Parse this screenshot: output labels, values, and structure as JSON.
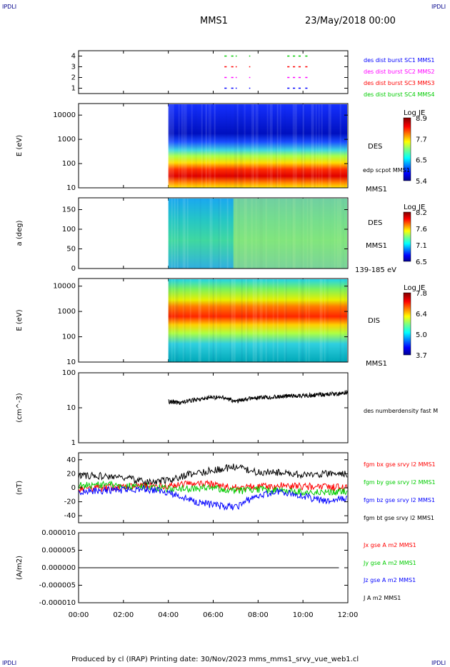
{
  "header": {
    "corner_tl": "IPDLI",
    "corner_tr": "IPDLI",
    "corner_bl": "IPDLI",
    "corner_br": "IPDLI",
    "title": "MMS1",
    "date": "23/May/2018 00:00"
  },
  "footer": {
    "text": "Produced by cl (IRAP)   Printing date: 30/Nov/2023   mms_mms1_srvy_vue_web1.cl"
  },
  "colors": {
    "bx": "#ff0000",
    "by": "#00cc00",
    "bz": "#0000ff",
    "bt": "#000000",
    "sc1": "#0000ff",
    "sc2": "#ff00ff",
    "sc3": "#ff0000",
    "sc4": "#00cc00"
  },
  "chart_data": [
    {
      "type": "scatter",
      "id": "burst",
      "yticks": [
        "1",
        "2",
        "3",
        "4"
      ],
      "ylim": [
        0.5,
        4.5
      ],
      "legend": [
        {
          "text": "des dist burst SC1 MMS1",
          "color": "#0000ff"
        },
        {
          "text": "des dist burst SC2 MMS2",
          "color": "#ff00ff"
        },
        {
          "text": "des dist burst SC3 MMS3",
          "color": "#ff0000"
        },
        {
          "text": "des dist burst SC4 MMS4",
          "color": "#00cc00"
        }
      ],
      "intervals_hours": [
        [
          6.5,
          6.6
        ],
        [
          6.8,
          6.9
        ],
        [
          7.0,
          7.05
        ],
        [
          7.6,
          7.65
        ],
        [
          9.3,
          9.4
        ],
        [
          9.55,
          9.65
        ],
        [
          9.8,
          9.9
        ],
        [
          10.1,
          10.2
        ]
      ]
    },
    {
      "type": "heatmap",
      "id": "des-energy",
      "ylabel": "E (eV)",
      "yticks": [
        "10",
        "100",
        "1000",
        "10000"
      ],
      "ylim_log": [
        10,
        30000
      ],
      "side_label_1": "DES",
      "side_label_2": "edp scpot MMS1",
      "side_label_3": "MMS1",
      "colorbar": {
        "title": "Log JE",
        "ticks": [
          "8.9",
          "7.7",
          "6.5",
          "5.4"
        ]
      },
      "data_start_hour": 4.0
    },
    {
      "type": "heatmap",
      "id": "des-pitch",
      "ylabel": "a (deg)",
      "yticks": [
        "0",
        "50",
        "100",
        "150"
      ],
      "ylim": [
        0,
        180
      ],
      "side_label_1": "DES",
      "side_label_2": "MMS1",
      "side_label_3": "139-185 eV",
      "colorbar": {
        "title": "Log JE",
        "ticks": [
          "8.2",
          "7.6",
          "7.1",
          "6.5"
        ]
      },
      "data_start_hour": 4.0
    },
    {
      "type": "heatmap",
      "id": "dis-energy",
      "ylabel": "E (eV)",
      "yticks": [
        "10",
        "100",
        "1000",
        "10000"
      ],
      "ylim_log": [
        10,
        20000
      ],
      "side_label_1": "DIS",
      "side_label_2": "MMS1",
      "colorbar": {
        "title": "Log JE",
        "ticks": [
          "7.8",
          "6.4",
          "5.0",
          "3.7"
        ]
      },
      "data_start_hour": 4.0
    },
    {
      "type": "line",
      "id": "density",
      "ylabel": "(cm^-3)",
      "yticks": [
        "1",
        "10",
        "100"
      ],
      "ylim_log": [
        1,
        100
      ],
      "series": [
        {
          "name": "des numberdensity fast M",
          "color": "#000000",
          "x": [
            4.0,
            4.5,
            5.0,
            5.5,
            6.0,
            6.5,
            7.0,
            7.5,
            8.0,
            8.5,
            9.0,
            9.5,
            10.0,
            10.5,
            11.0,
            11.5,
            12.0
          ],
          "y": [
            15,
            14,
            16,
            18,
            20,
            19,
            15,
            18,
            19,
            20,
            21,
            22,
            22,
            23,
            24,
            25,
            28
          ]
        }
      ]
    },
    {
      "type": "line",
      "id": "fgm",
      "ylabel": "(nT)",
      "yticks": [
        "-40",
        "-20",
        "0",
        "20",
        "40"
      ],
      "ylim": [
        -50,
        50
      ],
      "series": [
        {
          "name": "fgm bx gse srvy l2 MMS1",
          "color": "#ff0000",
          "x": [
            0,
            1,
            2,
            3,
            4,
            5,
            6,
            7,
            8,
            9,
            10,
            11,
            12
          ],
          "y": [
            -2,
            0,
            2,
            3,
            2,
            6,
            5,
            0,
            2,
            3,
            2,
            1,
            0
          ]
        },
        {
          "name": "fgm by gse srvy l2 MMS1",
          "color": "#00cc00",
          "x": [
            0,
            1,
            2,
            3,
            4,
            5,
            6,
            7,
            8,
            9,
            10,
            11,
            12
          ],
          "y": [
            3,
            4,
            3,
            2,
            -2,
            -1,
            0,
            -5,
            -3,
            -4,
            -6,
            -7,
            -5
          ]
        },
        {
          "name": "fgm bz gse srvy l2 MMS1",
          "color": "#0000ff",
          "x": [
            0,
            1,
            2,
            3,
            4,
            5,
            6,
            7,
            8,
            9,
            10,
            11,
            12
          ],
          "y": [
            -5,
            -4,
            -3,
            -2,
            -6,
            -18,
            -25,
            -28,
            -10,
            -5,
            -12,
            -20,
            -15
          ]
        },
        {
          "name": "fgm bt gse srvy l2 MMS1",
          "color": "#000000",
          "x": [
            0,
            1,
            2,
            3,
            4,
            5,
            6,
            7,
            8,
            9,
            10,
            11,
            12
          ],
          "y": [
            18,
            17,
            14,
            8,
            10,
            20,
            25,
            30,
            22,
            22,
            18,
            20,
            20
          ]
        }
      ]
    },
    {
      "type": "line",
      "id": "current",
      "ylabel": "(A/m2)",
      "yticks": [
        "-0.000010",
        "-0.000005",
        "0.000000",
        "0.000005",
        "0.000010"
      ],
      "ylim": [
        -1e-05,
        1e-05
      ],
      "series": [
        {
          "name": "Jx gse A m2 MMS1",
          "color": "#ff0000",
          "x": [
            0,
            12
          ],
          "y": [
            0,
            0
          ]
        },
        {
          "name": "Jy gse A m2 MMS1",
          "color": "#00cc00",
          "x": [
            0,
            12
          ],
          "y": [
            0,
            0
          ]
        },
        {
          "name": "Jz gse A m2 MMS1",
          "color": "#0000ff",
          "x": [
            0,
            12
          ],
          "y": [
            0,
            0
          ]
        },
        {
          "name": "J A m2 MMS1",
          "color": "#000000",
          "x": [
            0,
            12
          ],
          "y": [
            0,
            0
          ]
        }
      ]
    }
  ],
  "xaxis": {
    "ticks": [
      "00:00",
      "02:00",
      "04:00",
      "06:00",
      "08:00",
      "10:00",
      "12:00"
    ],
    "xlim_hours": [
      0,
      12
    ]
  }
}
